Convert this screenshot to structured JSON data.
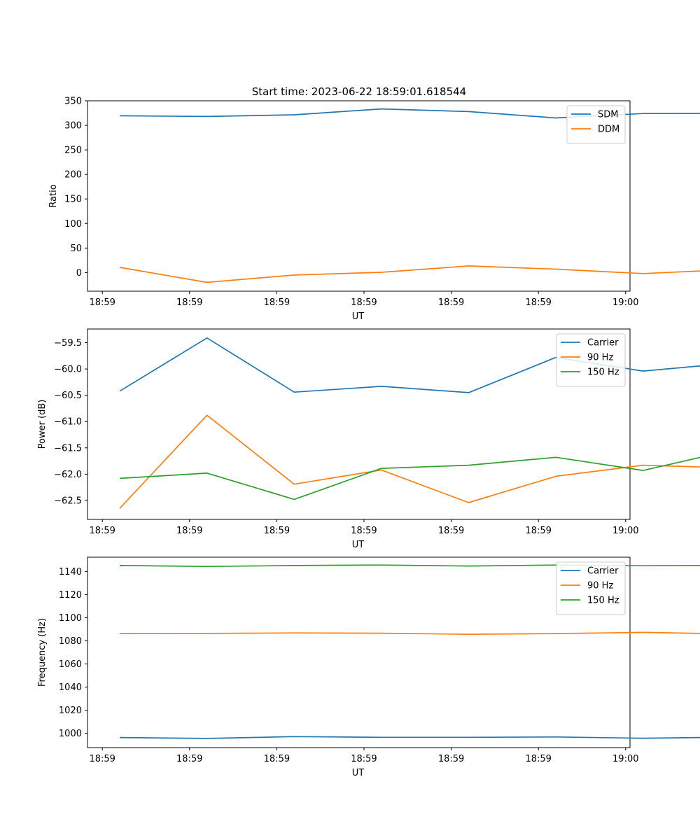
{
  "figure_title": "Start time: 2023-06-22 18:59:01.618544",
  "colors": {
    "blue": "#1f77b4",
    "orange": "#ff7f0e",
    "green": "#2ca02c"
  },
  "chart_data": [
    {
      "type": "line",
      "xlabel": "UT",
      "ylabel": "Ratio",
      "x_tick_labels": [
        "18:59",
        "18:59",
        "18:59",
        "18:59",
        "18:59",
        "18:59",
        "19:00"
      ],
      "xlim": [
        -0.37,
        5.85
      ],
      "x_ticks": [
        -0.2,
        0.8,
        1.8,
        2.8,
        3.8,
        4.8,
        5.8
      ],
      "ylim": [
        -38,
        350
      ],
      "y_ticks": [
        0,
        50,
        100,
        150,
        200,
        250,
        300,
        350
      ],
      "y_tick_labels": [
        "0",
        "50",
        "100",
        "150",
        "200",
        "250",
        "300",
        "350"
      ],
      "x": [
        0,
        1,
        2,
        3,
        4,
        5,
        6,
        7
      ],
      "legend_position": "upper-right",
      "series": [
        {
          "name": "SDM",
          "color": "#1f77b4",
          "values": [
            319.5,
            318,
            321.5,
            333.5,
            328,
            315,
            324,
            324.5
          ]
        },
        {
          "name": "DDM",
          "color": "#ff7f0e",
          "values": [
            10.5,
            -20,
            -5,
            0.5,
            13.5,
            7,
            -2,
            6
          ]
        }
      ]
    },
    {
      "type": "line",
      "xlabel": "UT",
      "ylabel": "Power (dB)",
      "x_tick_labels": [
        "18:59",
        "18:59",
        "18:59",
        "18:59",
        "18:59",
        "18:59",
        "19:00"
      ],
      "xlim": [
        -0.37,
        5.85
      ],
      "x_ticks": [
        -0.2,
        0.8,
        1.8,
        2.8,
        3.8,
        4.8,
        5.8
      ],
      "ylim": [
        -62.86,
        -59.24
      ],
      "y_ticks": [
        -62.5,
        -62.0,
        -61.5,
        -61.0,
        -60.5,
        -60.0,
        -59.5
      ],
      "y_tick_labels": [
        "−62.5",
        "−62.0",
        "−61.5",
        "−61.0",
        "−60.5",
        "−60.0",
        "−59.5"
      ],
      "x": [
        0,
        1,
        2,
        3,
        4,
        5,
        6,
        7
      ],
      "legend_position": "upper-right",
      "series": [
        {
          "name": "Carrier",
          "color": "#1f77b4",
          "values": [
            -60.42,
            -59.41,
            -60.44,
            -60.33,
            -60.45,
            -59.78,
            -60.04,
            -59.89
          ]
        },
        {
          "name": "90 Hz",
          "color": "#ff7f0e",
          "values": [
            -62.65,
            -60.88,
            -62.19,
            -61.92,
            -62.54,
            -62.04,
            -61.83,
            -61.88
          ]
        },
        {
          "name": "150 Hz",
          "color": "#2ca02c",
          "values": [
            -62.08,
            -61.98,
            -62.48,
            -61.89,
            -61.83,
            -61.68,
            -61.93,
            -61.55
          ]
        }
      ]
    },
    {
      "type": "line",
      "xlabel": "UT",
      "ylabel": "Frequency (Hz)",
      "x_tick_labels": [
        "18:59",
        "18:59",
        "18:59",
        "18:59",
        "18:59",
        "18:59",
        "19:00"
      ],
      "xlim": [
        -0.37,
        5.85
      ],
      "x_ticks": [
        -0.2,
        0.8,
        1.8,
        2.8,
        3.8,
        4.8,
        5.8
      ],
      "ylim": [
        987.7,
        1152.3
      ],
      "y_ticks": [
        1000,
        1020,
        1040,
        1060,
        1080,
        1100,
        1120,
        1140
      ],
      "y_tick_labels": [
        "1000",
        "1020",
        "1040",
        "1060",
        "1080",
        "1100",
        "1120",
        "1140"
      ],
      "x": [
        0,
        1,
        2,
        3,
        4,
        5,
        6,
        7
      ],
      "legend_position": "upper-right",
      "series": [
        {
          "name": "Carrier",
          "color": "#1f77b4",
          "values": [
            996.4,
            995.6,
            997.2,
            996.6,
            996.6,
            996.9,
            995.8,
            996.7
          ]
        },
        {
          "name": "90 Hz",
          "color": "#ff7f0e",
          "values": [
            1086.3,
            1086.4,
            1086.8,
            1086.6,
            1085.7,
            1086.3,
            1087.3,
            1085.9
          ]
        },
        {
          "name": "150 Hz",
          "color": "#2ca02c",
          "values": [
            1145.1,
            1144.3,
            1145.1,
            1145.5,
            1144.7,
            1145.5,
            1144.9,
            1145.3
          ]
        }
      ]
    }
  ]
}
